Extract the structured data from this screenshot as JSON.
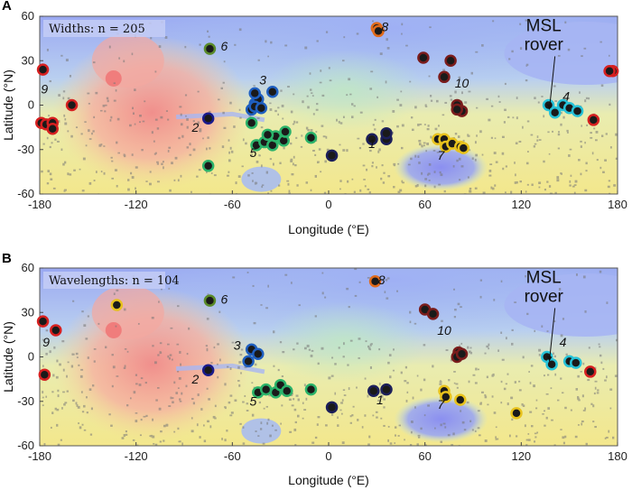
{
  "colors": {
    "low": "#8fa0f0",
    "highlands": "#f4e890",
    "tharsis": "#f3a0a0",
    "plains": "#9fb4f2",
    "speckle": "#777777"
  },
  "chart_data": [
    {
      "type": "scatter",
      "panel": "A",
      "count_label": "Widths: n = 205",
      "xlabel": "Longitude (°E)",
      "ylabel": "Latitude (°N)",
      "xlim": [
        -180,
        180
      ],
      "ylim": [
        -60,
        60
      ],
      "xticks": [
        -180,
        -120,
        -60,
        0,
        60,
        120,
        180
      ],
      "yticks": [
        -60,
        -30,
        0,
        30,
        60
      ],
      "annotation": "MSL rover",
      "region_labels": [
        {
          "text": "1",
          "lon": 27,
          "lat": -29
        },
        {
          "text": "2",
          "lon": -83,
          "lat": -18
        },
        {
          "text": "3",
          "lon": -41,
          "lat": 14
        },
        {
          "text": "4",
          "lon": 148,
          "lat": 3
        },
        {
          "text": "5",
          "lon": -47,
          "lat": -35
        },
        {
          "text": "6",
          "lon": -65,
          "lat": 37
        },
        {
          "text": "7",
          "lon": 70,
          "lat": -37
        },
        {
          "text": "8",
          "lon": 35,
          "lat": 50
        },
        {
          "text": "9",
          "lon": -177,
          "lat": 8
        },
        {
          "text": "10",
          "lon": 83,
          "lat": 12
        }
      ],
      "series": [
        {
          "name": "1",
          "color": "#1c1f5a",
          "points": [
            [
              2,
              -34
            ],
            [
              27,
              -23
            ],
            [
              36,
              -23
            ],
            [
              36,
              -19
            ]
          ]
        },
        {
          "name": "2",
          "color": "#1a1a8c",
          "points": [
            [
              -75,
              -9
            ]
          ]
        },
        {
          "name": "3",
          "color": "#1f5fc0",
          "points": [
            [
              -48,
              -3
            ],
            [
              -46,
              1
            ],
            [
              -44,
              4
            ],
            [
              -46,
              -1
            ],
            [
              -42,
              -2
            ],
            [
              -35,
              9
            ],
            [
              -46,
              8
            ]
          ]
        },
        {
          "name": "4",
          "color": "#26c2d8",
          "points": [
            [
              137,
              0
            ],
            [
              141,
              -5
            ],
            [
              146,
              0
            ],
            [
              150,
              -2
            ],
            [
              155,
              -4
            ]
          ]
        },
        {
          "name": "5",
          "color": "#2bb36a",
          "points": [
            [
              -45,
              -27
            ],
            [
              -40,
              -25
            ],
            [
              -35,
              -27
            ],
            [
              -33,
              -21
            ],
            [
              -28,
              -24
            ],
            [
              -27,
              -18
            ],
            [
              -38,
              -20
            ],
            [
              -48,
              -12
            ],
            [
              -11,
              -22
            ],
            [
              -75,
              -41
            ]
          ]
        },
        {
          "name": "6",
          "color": "#5a8a2a",
          "points": [
            [
              -74,
              38
            ]
          ]
        },
        {
          "name": "7",
          "color": "#e8c21c",
          "points": [
            [
              68,
              -23
            ],
            [
              72,
              -23
            ],
            [
              73,
              -28
            ],
            [
              77,
              -26
            ],
            [
              82,
              -28
            ],
            [
              84,
              -29
            ]
          ]
        },
        {
          "name": "8",
          "color": "#e06a1a",
          "points": [
            [
              30,
              52
            ],
            [
              31,
              50
            ]
          ]
        },
        {
          "name": "9",
          "color": "#d62020",
          "points": [
            [
              -178,
              24
            ],
            [
              -179,
              -12
            ],
            [
              -176,
              -13
            ],
            [
              -172,
              -12
            ],
            [
              -172,
              -16
            ],
            [
              -160,
              0
            ],
            [
              165,
              -10
            ],
            [
              177,
              23
            ],
            [
              175,
              23
            ]
          ]
        },
        {
          "name": "10",
          "color": "#7a1c1c",
          "points": [
            [
              59,
              32
            ],
            [
              72,
              19
            ],
            [
              76,
              30
            ],
            [
              80,
              0
            ],
            [
              83,
              -4
            ],
            [
              80,
              -3
            ]
          ]
        }
      ]
    },
    {
      "type": "scatter",
      "panel": "B",
      "count_label": "Wavelengths: n = 104",
      "xlabel": "Longitude (°E)",
      "ylabel": "Latitude (°N)",
      "xlim": [
        -180,
        180
      ],
      "ylim": [
        -60,
        60
      ],
      "xticks": [
        -180,
        -120,
        -60,
        0,
        60,
        120,
        180
      ],
      "yticks": [
        -60,
        -30,
        0,
        30,
        60
      ],
      "annotation": "MSL rover",
      "region_labels": [
        {
          "text": "1",
          "lon": 32,
          "lat": -32
        },
        {
          "text": "2",
          "lon": -83,
          "lat": -18
        },
        {
          "text": "3",
          "lon": -57,
          "lat": 5
        },
        {
          "text": "4",
          "lon": 146,
          "lat": 7
        },
        {
          "text": "5",
          "lon": -47,
          "lat": -33
        },
        {
          "text": "6",
          "lon": -65,
          "lat": 36
        },
        {
          "text": "7",
          "lon": 70,
          "lat": -35
        },
        {
          "text": "8",
          "lon": 33,
          "lat": 49
        },
        {
          "text": "9",
          "lon": -176,
          "lat": 7
        },
        {
          "text": "10",
          "lon": 72,
          "lat": 15
        }
      ],
      "series": [
        {
          "name": "1",
          "color": "#1c1f5a",
          "points": [
            [
              2,
              -34
            ],
            [
              28,
              -23
            ],
            [
              36,
              -22
            ]
          ]
        },
        {
          "name": "2",
          "color": "#1a1a8c",
          "points": [
            [
              -75,
              -9
            ]
          ]
        },
        {
          "name": "3",
          "color": "#1f5fc0",
          "points": [
            [
              -50,
              -3
            ],
            [
              -48,
              5
            ],
            [
              -44,
              2
            ]
          ]
        },
        {
          "name": "4",
          "color": "#26c2d8",
          "points": [
            [
              136,
              0
            ],
            [
              139,
              -5
            ],
            [
              150,
              -3
            ],
            [
              154,
              -4
            ]
          ]
        },
        {
          "name": "5",
          "color": "#2bb36a",
          "points": [
            [
              -44,
              -24
            ],
            [
              -39,
              -22
            ],
            [
              -33,
              -24
            ],
            [
              -30,
              -19
            ],
            [
              -26,
              -23
            ],
            [
              -11,
              -22
            ]
          ]
        },
        {
          "name": "6",
          "color": "#5a8a2a",
          "points": [
            [
              -74,
              38
            ]
          ]
        },
        {
          "name": "7",
          "color": "#e8c21c",
          "points": [
            [
              -132,
              35
            ],
            [
              72,
              -23
            ],
            [
              73,
              -27
            ],
            [
              82,
              -29
            ],
            [
              117,
              -38
            ]
          ]
        },
        {
          "name": "8",
          "color": "#e06a1a",
          "points": [
            [
              29,
              51
            ]
          ]
        },
        {
          "name": "9",
          "color": "#d62020",
          "points": [
            [
              -178,
              24
            ],
            [
              -170,
              18
            ],
            [
              -177,
              -12
            ],
            [
              163,
              -10
            ]
          ]
        },
        {
          "name": "10",
          "color": "#7a1c1c",
          "points": [
            [
              60,
              32
            ],
            [
              65,
              29
            ],
            [
              81,
              3
            ],
            [
              80,
              0
            ],
            [
              83,
              2
            ]
          ]
        }
      ]
    }
  ]
}
